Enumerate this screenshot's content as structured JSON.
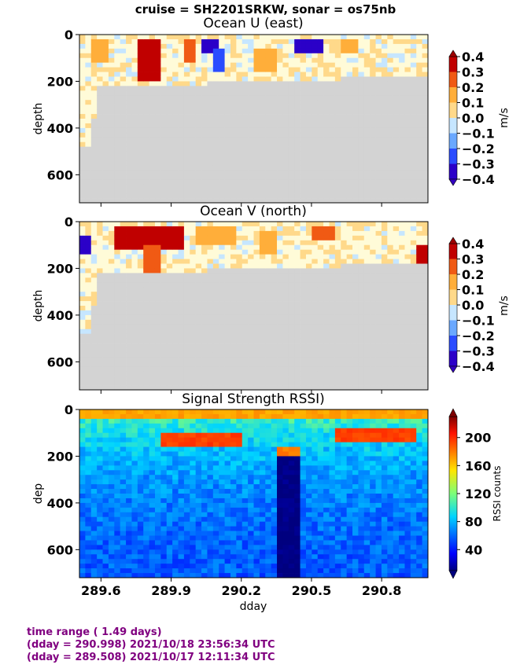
{
  "figure": {
    "suptitle": "cruise = SH2201SRKW,  sonar = os75nb",
    "footer": [
      "time range ( 1.49 days)",
      "(dday = 290.998) 2021/10/18 23:56:34 UTC",
      "(dday = 289.508) 2021/10/17 12:11:34 UTC"
    ],
    "colors": {
      "no_data": "#d3d3d3",
      "footer_text": "#800080"
    }
  },
  "chart_data": [
    {
      "type": "heatmap",
      "title": "Ocean U (east)",
      "xlabel": "",
      "ylabel": "depth",
      "xlim": [
        289.508,
        290.998
      ],
      "ylim": [
        720,
        0
      ],
      "yticks": [
        0,
        200,
        400,
        600
      ],
      "colorbar": {
        "label": "m/s",
        "min": -0.4,
        "max": 0.4,
        "cmap": "diverging-jet",
        "ticks": [
          "0.4",
          "0.3",
          "0.2",
          "0.1",
          "0.0",
          "−0.1",
          "−0.2",
          "−0.3",
          "−0.4"
        ]
      },
      "max_valid_depth": [
        {
          "x": 289.508,
          "depth": 480
        },
        {
          "x": 289.56,
          "depth": 480
        },
        {
          "x": 289.58,
          "depth": 230
        },
        {
          "x": 290.0,
          "depth": 220
        },
        {
          "x": 290.2,
          "depth": 190
        },
        {
          "x": 290.5,
          "depth": 200
        },
        {
          "x": 290.7,
          "depth": 185
        },
        {
          "x": 290.998,
          "depth": 180
        }
      ],
      "features": [
        {
          "x": [
            289.75,
            289.86
          ],
          "depth": [
            30,
            200
          ],
          "value": 0.35
        },
        {
          "x": [
            290.03,
            290.1
          ],
          "depth": [
            30,
            80
          ],
          "value": -0.38
        },
        {
          "x": [
            290.08,
            290.13
          ],
          "depth": [
            60,
            160
          ],
          "value": -0.25
        },
        {
          "x": [
            290.43,
            290.55
          ],
          "depth": [
            20,
            80
          ],
          "value": -0.35
        },
        {
          "x": [
            289.95,
            290.0
          ],
          "depth": [
            30,
            120
          ],
          "value": 0.3
        },
        {
          "x": [
            289.55,
            289.62
          ],
          "depth": [
            20,
            120
          ],
          "value": 0.2
        },
        {
          "x": [
            290.25,
            290.35
          ],
          "depth": [
            60,
            160
          ],
          "value": 0.15
        },
        {
          "x": [
            290.62,
            290.7
          ],
          "depth": [
            30,
            80
          ],
          "value": 0.2
        }
      ]
    },
    {
      "type": "heatmap",
      "title": "Ocean V (north)",
      "xlabel": "",
      "ylabel": "depth",
      "xlim": [
        289.508,
        290.998
      ],
      "ylim": [
        720,
        0
      ],
      "yticks": [
        0,
        200,
        400,
        600
      ],
      "colorbar": {
        "label": "m/s",
        "min": -0.4,
        "max": 0.4,
        "cmap": "diverging-jet",
        "ticks": [
          "0.4",
          "0.3",
          "0.2",
          "0.1",
          "0.0",
          "−0.1",
          "−0.2",
          "−0.3",
          "−0.4"
        ]
      },
      "max_valid_depth": [
        {
          "x": 289.508,
          "depth": 480
        },
        {
          "x": 289.56,
          "depth": 480
        },
        {
          "x": 289.58,
          "depth": 230
        },
        {
          "x": 290.0,
          "depth": 220
        },
        {
          "x": 290.2,
          "depth": 190
        },
        {
          "x": 290.5,
          "depth": 200
        },
        {
          "x": 290.7,
          "depth": 185
        },
        {
          "x": 290.998,
          "depth": 180
        }
      ],
      "features": [
        {
          "x": [
            289.52,
            289.57
          ],
          "depth": [
            60,
            140
          ],
          "value": -0.38
        },
        {
          "x": [
            289.65,
            289.95
          ],
          "depth": [
            20,
            120
          ],
          "value": 0.32
        },
        {
          "x": [
            289.78,
            289.85
          ],
          "depth": [
            100,
            220
          ],
          "value": 0.25
        },
        {
          "x": [
            290.0,
            290.18
          ],
          "depth": [
            20,
            100
          ],
          "value": 0.22
        },
        {
          "x": [
            290.28,
            290.35
          ],
          "depth": [
            40,
            140
          ],
          "value": 0.15
        },
        {
          "x": [
            290.5,
            290.6
          ],
          "depth": [
            20,
            80
          ],
          "value": 0.3
        },
        {
          "x": [
            290.95,
            290.998
          ],
          "depth": [
            100,
            180
          ],
          "value": 0.35
        }
      ]
    },
    {
      "type": "heatmap",
      "title": "Signal Strength RSSI)",
      "xlabel": "dday",
      "ylabel": "dep",
      "xlim": [
        289.508,
        290.998
      ],
      "ylim": [
        720,
        0
      ],
      "xticks": [
        "289.6",
        "289.9",
        "290.2",
        "290.5",
        "290.8"
      ],
      "xtick_values": [
        289.6,
        289.9,
        290.2,
        290.5,
        290.8
      ],
      "yticks": [
        0,
        200,
        400,
        600
      ],
      "colorbar": {
        "label": "RSSI counts",
        "min": 10,
        "max": 230,
        "cmap": "jet",
        "ticks": [
          "200",
          "160",
          "120",
          "80",
          "40"
        ]
      },
      "features": [
        {
          "x": [
            289.508,
            290.998
          ],
          "depth": [
            10,
            40
          ],
          "value": 175
        },
        {
          "x": [
            289.85,
            290.2
          ],
          "depth": [
            100,
            160
          ],
          "value": 200
        },
        {
          "x": [
            290.35,
            290.45
          ],
          "depth": [
            170,
            200
          ],
          "value": 185
        },
        {
          "x": [
            290.6,
            290.95
          ],
          "depth": [
            80,
            130
          ],
          "value": 200
        },
        {
          "x": [
            290.35,
            290.45
          ],
          "depth": [
            200,
            720
          ],
          "value": 15
        }
      ]
    }
  ]
}
